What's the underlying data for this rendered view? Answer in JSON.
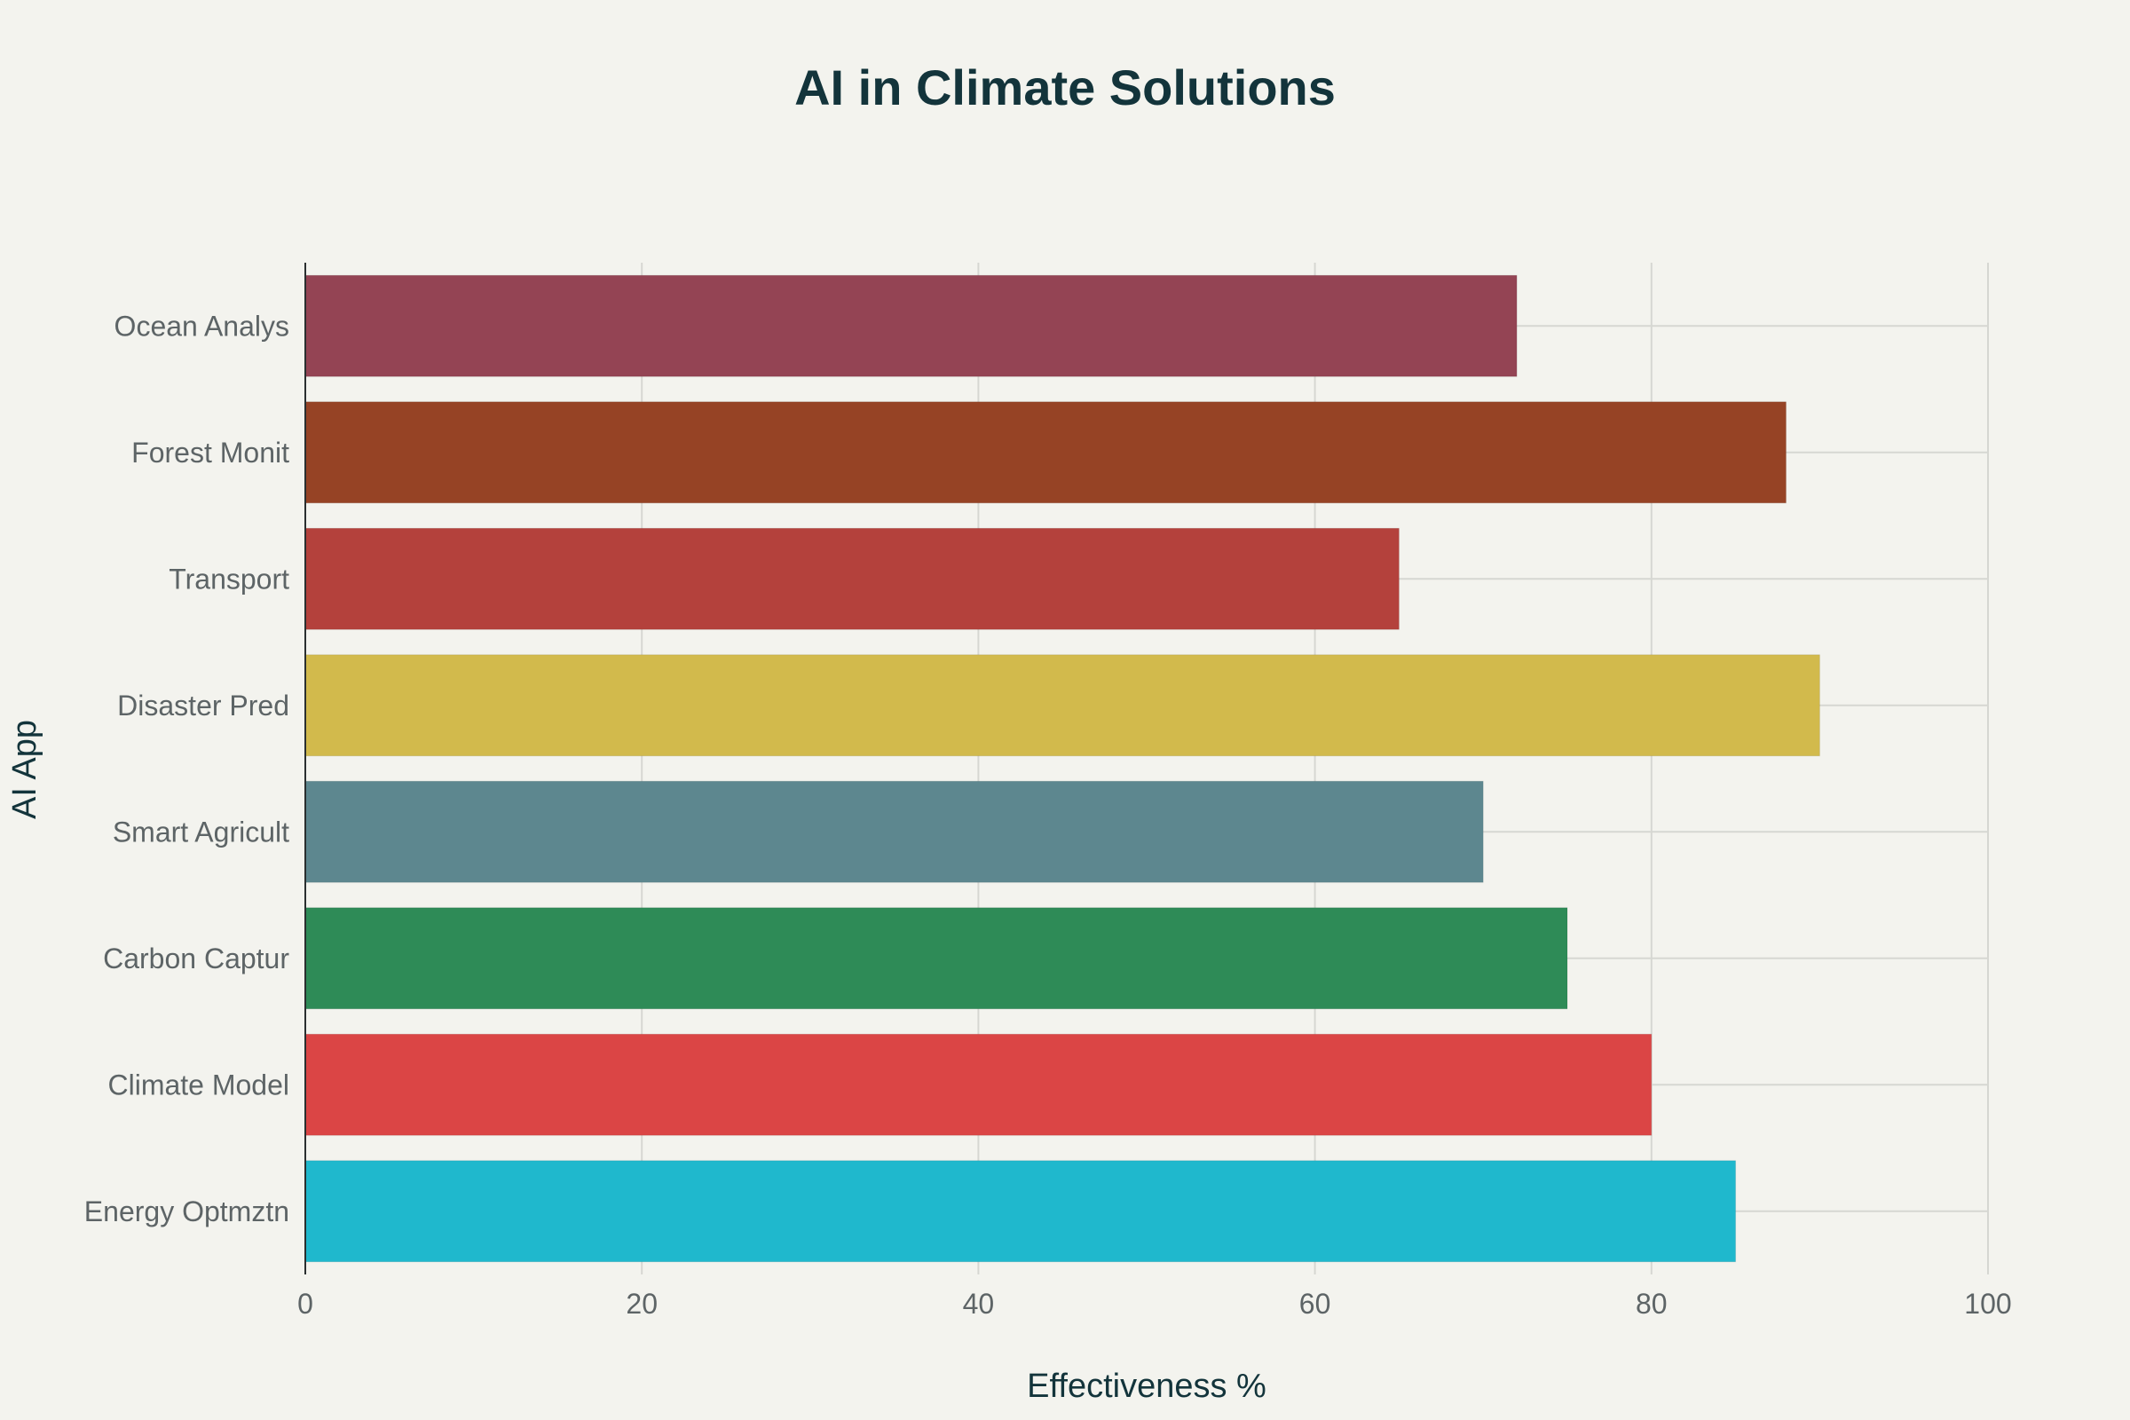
{
  "chart_data": {
    "type": "bar",
    "orientation": "horizontal",
    "title": "AI in Climate Solutions",
    "xlabel": "Effectiveness %",
    "ylabel": "AI App",
    "xlim": [
      0,
      100
    ],
    "xticks": [
      0,
      20,
      40,
      60,
      80,
      100
    ],
    "xtick_labels": [
      "0",
      "20",
      "40",
      "60",
      "80",
      "100"
    ],
    "grid": true,
    "categories": [
      "Energy Optmztn",
      "Climate Model",
      "Carbon Captur",
      "Smart Agricult",
      "Disaster Pred",
      "Transport",
      "Forest Monit",
      "Ocean Analys"
    ],
    "values": [
      85,
      80,
      75,
      70,
      90,
      65,
      88,
      72
    ],
    "colors": [
      "#1fb8cd",
      "#db4545",
      "#2e8b57",
      "#5d878f",
      "#d2ba4c",
      "#b4413c",
      "#964325",
      "#944454"
    ]
  },
  "colors": {
    "background": "#f3f3ee",
    "title": "#13343b",
    "tick_text": "#5d6466",
    "grid": "#d6d7d2"
  }
}
